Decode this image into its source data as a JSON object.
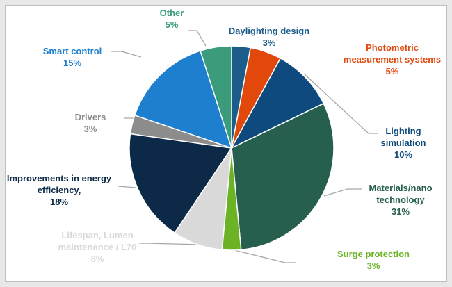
{
  "chart_data": {
    "type": "pie",
    "categories": [
      "Daylighting design",
      "Photometric measurement systems",
      "Lighting simulation",
      "Materials/nanotechnology",
      "Surge protection",
      "Lifespan, Lumen maintenance / L70",
      "Improvements in energy efficiency,",
      "Drivers",
      "Smart control",
      "Other"
    ],
    "values": [
      3,
      5,
      10,
      31,
      3,
      8,
      18,
      3,
      15,
      5
    ],
    "value_labels": [
      "3%",
      "5%",
      "10%",
      "31%",
      "3%",
      "8%",
      "18%",
      "3%",
      "15%",
      "5%"
    ],
    "colors": [
      "#1c5d8c",
      "#e2480c",
      "#0f4a7e",
      "#275f4f",
      "#6bb324",
      "#d9d9d9",
      "#0c2a47",
      "#8c8c8c",
      "#1e7fcf",
      "#3a9c7a"
    ],
    "label_colors": [
      "#1c5d8c",
      "#e2480c",
      "#0f4a7e",
      "#275f4f",
      "#6bb324",
      "#d9d9d9",
      "#0c2a47",
      "#8c8c8c",
      "#1e7fcf",
      "#3a9c7a"
    ]
  }
}
